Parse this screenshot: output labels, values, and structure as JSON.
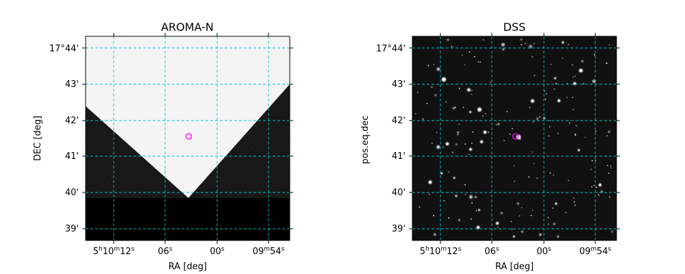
{
  "chart_data": [
    {
      "type": "image",
      "title": "AROMA-N",
      "xlabel": "RA [deg]",
      "ylabel": "DEC [deg]",
      "x_ticks": [
        {
          "main": "5",
          "s1": "h",
          "mid": "10",
          "s2": "m",
          "end": "12",
          "s3": "s"
        },
        {
          "main": "06",
          "s1": "s"
        },
        {
          "main": "00",
          "s1": "s"
        },
        {
          "main": "09",
          "s1": "m",
          "mid": "54",
          "s2": "s"
        }
      ],
      "y_ticks": [
        "17°44'",
        "43'",
        "42'",
        "41'",
        "40'",
        "39'"
      ],
      "image_style": "white sky coverage region above a dark V-shaped boundary, black outside coverage",
      "grid": true,
      "grid_color": "#00c8c8",
      "marker": {
        "shape": "circle",
        "color": "#ff00ff",
        "ra_pos": 0.505,
        "dec_pos": 0.49
      },
      "colors": {
        "background": "#000000",
        "coverage": "#f5f5f5"
      }
    },
    {
      "type": "image",
      "title": "DSS",
      "xlabel": "RA [deg]",
      "ylabel": "pos.eq.dec",
      "x_ticks": [
        {
          "main": "5",
          "s1": "h",
          "mid": "10",
          "s2": "m",
          "end": "12",
          "s3": "s"
        },
        {
          "main": "06",
          "s1": "s"
        },
        {
          "main": "00",
          "s1": "s"
        },
        {
          "main": "09",
          "s1": "m",
          "mid": "54",
          "s2": "s"
        }
      ],
      "y_ticks": [
        "17°44'",
        "43'",
        "42'",
        "41'",
        "40'",
        "39'"
      ],
      "image_style": "dark star field with scattered white point sources",
      "grid": true,
      "grid_color": "#00c8c8",
      "marker": {
        "shape": "circle",
        "color": "#ff00ff",
        "ra_pos": 0.505,
        "dec_pos": 0.49
      },
      "colors": {
        "background": "#111111",
        "star": "#ffffff"
      }
    }
  ]
}
